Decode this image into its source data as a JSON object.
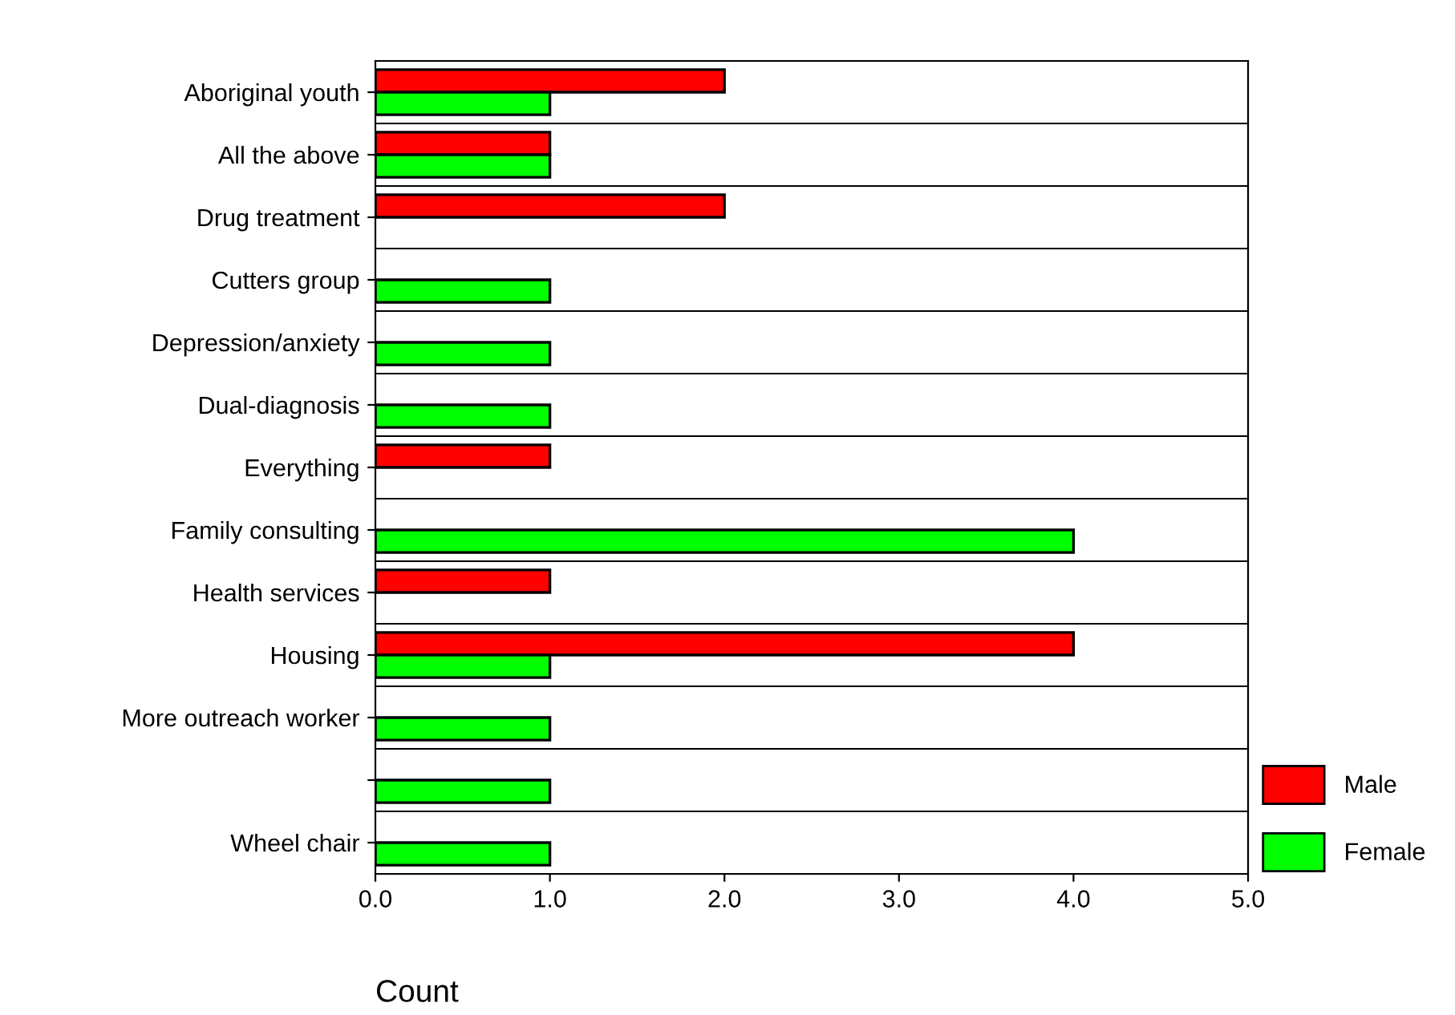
{
  "chart_data": {
    "type": "bar",
    "orientation": "horizontal",
    "xlabel": "Count",
    "categories": [
      "Aboriginal youth",
      "All the above",
      "Drug treatment",
      "Cutters group",
      "Depression/anxiety",
      "Dual-diagnosis",
      "Everything",
      "Family consulting",
      "Health services",
      "Housing",
      "More outreach worker",
      null,
      "Wheel chair"
    ],
    "series": [
      {
        "name": "Male",
        "color": "#ff0000",
        "values": [
          2,
          1,
          2,
          null,
          null,
          null,
          1,
          null,
          1,
          4,
          null,
          null,
          null
        ]
      },
      {
        "name": "Female",
        "color": "#00ff00",
        "values": [
          1,
          1,
          null,
          1,
          1,
          1,
          null,
          4,
          null,
          1,
          1,
          1,
          1
        ]
      }
    ],
    "xlim": [
      0,
      5
    ],
    "xticks": [
      {
        "value": 0,
        "label": "0.0"
      },
      {
        "value": 1,
        "label": "1.0"
      },
      {
        "value": 2,
        "label": "2.0"
      },
      {
        "value": 3,
        "label": "3.0"
      },
      {
        "value": 4,
        "label": "4.0"
      },
      {
        "value": 5,
        "label": "5.0"
      }
    ],
    "grid": "y",
    "legend": "bottom right"
  }
}
